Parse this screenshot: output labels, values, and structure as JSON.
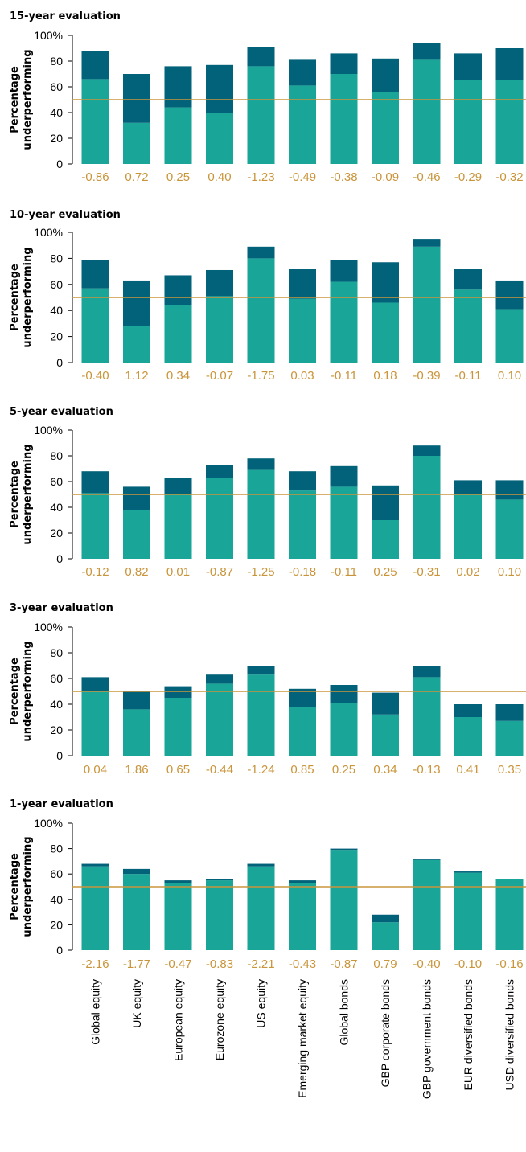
{
  "colors": {
    "lower": "#19a597",
    "upper": "#02627a",
    "ref_line": "#c9953b",
    "label": "#c9953b",
    "axis": "#000000"
  },
  "chart_data": [
    {
      "type": "bar",
      "stacked": true,
      "title": "15-year evaluation",
      "ylabel_lines": [
        "Percentage",
        "underperforming"
      ],
      "ylim": [
        0,
        100
      ],
      "yticks": [
        "0",
        "20",
        "40",
        "60",
        "80",
        "100%"
      ],
      "reference_line": 50,
      "categories": [
        "Global equity",
        "UK equity",
        "European equity",
        "Eurozone equity",
        "US equity",
        "Emerging market equity",
        "Global bonds",
        "GBP corporate bonds",
        "GBP government bonds",
        "EUR diversified  bonds",
        "USD diversified bonds"
      ],
      "series": [
        {
          "values": [
            66,
            32,
            44,
            40,
            76,
            61,
            70,
            56,
            81,
            65,
            65
          ]
        },
        {
          "values": [
            22,
            38,
            32,
            37,
            15,
            20,
            16,
            26,
            13,
            21,
            25
          ]
        }
      ],
      "totals": [
        88,
        70,
        76,
        77,
        91,
        81,
        86,
        82,
        94,
        86,
        90
      ],
      "data_labels": [
        "-0.86",
        "0.72",
        "0.25",
        "0.40",
        "-1.23",
        "-0.49",
        "-0.38",
        "-0.09",
        "-0.46",
        "-0.29",
        "-0.32"
      ]
    },
    {
      "type": "bar",
      "stacked": true,
      "title": "10-year evaluation",
      "ylabel_lines": [
        "Percentage",
        "underperforming"
      ],
      "ylim": [
        0,
        100
      ],
      "yticks": [
        "0",
        "20",
        "40",
        "60",
        "80",
        "100%"
      ],
      "reference_line": 50,
      "categories": [
        "Global equity",
        "UK equity",
        "European equity",
        "Eurozone equity",
        "US equity",
        "Emerging market equity",
        "Global bonds",
        "GBP corporate bonds",
        "GBP government bonds",
        "EUR diversified  bonds",
        "USD diversified bonds"
      ],
      "series": [
        {
          "values": [
            57,
            28,
            44,
            51,
            80,
            49,
            62,
            46,
            89,
            56,
            41
          ]
        },
        {
          "values": [
            22,
            35,
            23,
            20,
            9,
            23,
            17,
            31,
            6,
            16,
            22
          ]
        }
      ],
      "totals": [
        79,
        63,
        67,
        71,
        89,
        72,
        79,
        77,
        95,
        72,
        63
      ],
      "data_labels": [
        "-0.40",
        "1.12",
        "0.34",
        "-0.07",
        "-1.75",
        "0.03",
        "-0.11",
        "0.18",
        "-0.39",
        "-0.11",
        "0.10"
      ]
    },
    {
      "type": "bar",
      "stacked": true,
      "title": "5-year evaluation",
      "ylabel_lines": [
        "Percentage",
        "underperforming"
      ],
      "ylim": [
        0,
        100
      ],
      "yticks": [
        "0",
        "20",
        "40",
        "60",
        "80",
        "100%"
      ],
      "reference_line": 50,
      "categories": [
        "Global equity",
        "UK equity",
        "European equity",
        "Eurozone equity",
        "US equity",
        "Emerging market equity",
        "Global bonds",
        "GBP corporate bonds",
        "GBP government bonds",
        "EUR diversified  bonds",
        "USD diversified bonds"
      ],
      "series": [
        {
          "values": [
            51,
            38,
            50,
            63,
            69,
            53,
            56,
            30,
            80,
            50,
            46
          ]
        },
        {
          "values": [
            17,
            18,
            13,
            10,
            9,
            15,
            16,
            27,
            8,
            11,
            15
          ]
        }
      ],
      "totals": [
        68,
        56,
        63,
        73,
        78,
        68,
        72,
        57,
        88,
        61,
        61
      ],
      "data_labels": [
        "-0.12",
        "0.82",
        "0.01",
        "-0.87",
        "-1.25",
        "-0.18",
        "-0.11",
        "0.25",
        "-0.31",
        "0.02",
        "0.10"
      ]
    },
    {
      "type": "bar",
      "stacked": true,
      "title": "3-year evaluation",
      "ylabel_lines": [
        "Percentage",
        "underperforming"
      ],
      "ylim": [
        0,
        100
      ],
      "yticks": [
        "0",
        "20",
        "40",
        "60",
        "80",
        "100%"
      ],
      "reference_line": 50,
      "categories": [
        "Global equity",
        "UK equity",
        "European equity",
        "Eurozone equity",
        "US equity",
        "Emerging market equity",
        "Global bonds",
        "GBP corporate bonds",
        "GBP government bonds",
        "EUR diversified  bonds",
        "USD diversified bonds"
      ],
      "series": [
        {
          "values": [
            50,
            36,
            45,
            56,
            63,
            38,
            41,
            32,
            61,
            30,
            27
          ]
        },
        {
          "values": [
            11,
            14,
            9,
            7,
            7,
            14,
            14,
            17,
            9,
            10,
            13
          ]
        }
      ],
      "totals": [
        61,
        50,
        54,
        63,
        70,
        52,
        55,
        49,
        70,
        40,
        40
      ],
      "data_labels": [
        "0.04",
        "1.86",
        "0.65",
        "-0.44",
        "-1.24",
        "0.85",
        "0.25",
        "0.34",
        "-0.13",
        "0.41",
        "0.35"
      ]
    },
    {
      "type": "bar",
      "stacked": true,
      "title": "1-year evaluation",
      "ylabel_lines": [
        "Percentage",
        "underperforming"
      ],
      "ylim": [
        0,
        100
      ],
      "yticks": [
        "0",
        "20",
        "40",
        "60",
        "80",
        "100%"
      ],
      "reference_line": 50,
      "categories": [
        "Global equity",
        "UK equity",
        "European equity",
        "Eurozone equity",
        "US equity",
        "Emerging market equity",
        "Global bonds",
        "GBP corporate bonds",
        "GBP government bonds",
        "EUR diversified  bonds",
        "USD diversified bonds"
      ],
      "series": [
        {
          "values": [
            66,
            60,
            53,
            55,
            66,
            53,
            79,
            22,
            71,
            61,
            56
          ]
        },
        {
          "values": [
            2,
            4,
            2,
            1,
            2,
            2,
            1,
            6,
            1,
            1,
            0
          ]
        }
      ],
      "totals": [
        68,
        64,
        55,
        56,
        68,
        55,
        80,
        28,
        72,
        62,
        56
      ],
      "data_labels": [
        "-2.16",
        "-1.77",
        "-0.47",
        "-0.83",
        "-2.21",
        "-0.43",
        "-0.87",
        "0.79",
        "-0.40",
        "-0.10",
        "-0.16"
      ]
    }
  ]
}
